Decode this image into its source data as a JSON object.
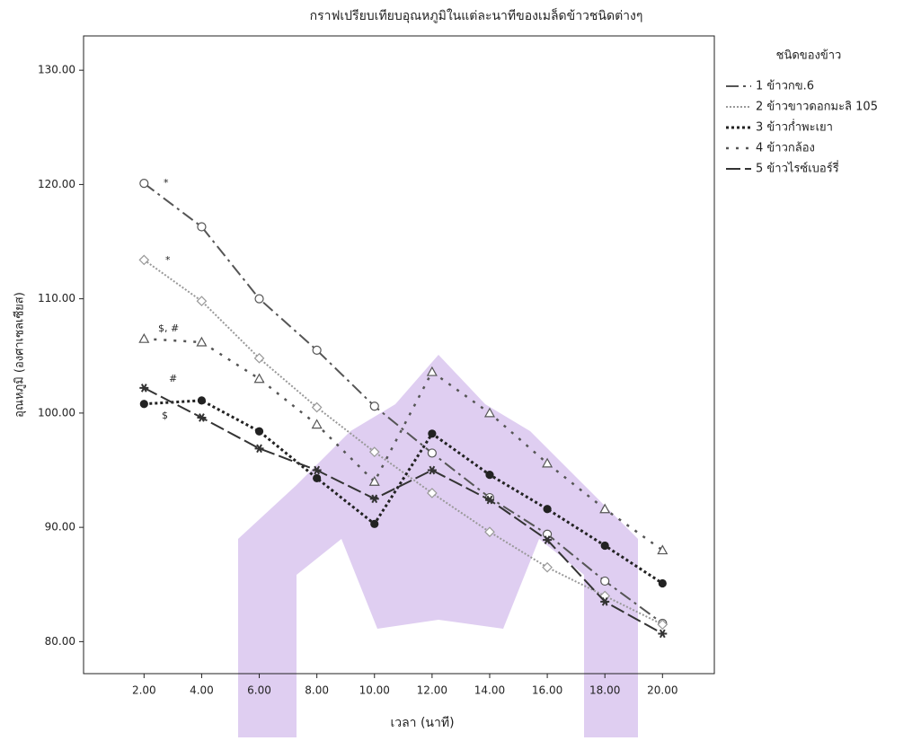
{
  "chart_data": {
    "type": "line",
    "title": "กราฟเปรียบเทียบอุณหภูมิในแต่ละนาทีของเมล็ดข้าวชนิดต่างๆ",
    "x_label": "เวลา (นาที)",
    "y_label": "อุณหภูมิ (องศาเซลเซียส)",
    "legend_title": "ชนิดของข้าว",
    "legend": "right",
    "x": [
      2,
      4,
      6,
      8,
      10,
      12,
      14,
      16,
      18,
      20
    ],
    "xlim": [
      -0.1,
      21.8
    ],
    "ylim": [
      77.2,
      133
    ],
    "xticks": [
      {
        "value": 2,
        "label": "2.00"
      },
      {
        "value": 4,
        "label": "4.00"
      },
      {
        "value": 6,
        "label": "6.00"
      },
      {
        "value": 8,
        "label": "8.00"
      },
      {
        "value": 10,
        "label": "10.00"
      },
      {
        "value": 12,
        "label": "12.00"
      },
      {
        "value": 14,
        "label": "14.00"
      },
      {
        "value": 16,
        "label": "16.00"
      },
      {
        "value": 18,
        "label": "18.00"
      },
      {
        "value": 20,
        "label": "20.00"
      }
    ],
    "yticks": [
      {
        "value": 80,
        "label": "80.00"
      },
      {
        "value": 90,
        "label": "90.00"
      },
      {
        "value": 100,
        "label": "100.00"
      },
      {
        "value": 110,
        "label": "110.00"
      },
      {
        "value": 120,
        "label": "120.00"
      },
      {
        "value": 130,
        "label": "130.00"
      }
    ],
    "series": [
      {
        "name": "1 ข้าวกข.6",
        "color": "#555555",
        "dash": "dash-dot",
        "marker": "circle",
        "values": [
          120.1,
          116.3,
          110.0,
          105.5,
          100.6,
          96.5,
          92.6,
          89.4,
          85.3,
          81.6
        ]
      },
      {
        "name": "2 ข้าวขาวดอกมะลิ 105",
        "color": "#999999",
        "dash": "dot-fine",
        "marker": "diamond",
        "values": [
          113.4,
          109.8,
          104.8,
          100.5,
          96.6,
          93.0,
          89.6,
          86.5,
          84.0,
          81.5
        ]
      },
      {
        "name": "3 ข้าวก่ำพะเยา",
        "color": "#222222",
        "dash": "dot",
        "marker": "filled-circle",
        "values": [
          100.8,
          101.1,
          98.4,
          94.3,
          90.3,
          98.2,
          94.6,
          91.6,
          88.4,
          85.1
        ]
      },
      {
        "name": "4 ข้าวกล้อง",
        "color": "#555555",
        "dash": "dot-sparse",
        "marker": "triangle",
        "values": [
          106.5,
          106.2,
          103.0,
          99.0,
          94.0,
          103.6,
          100.0,
          95.6,
          91.6,
          88.0
        ]
      },
      {
        "name": "5 ข้าวไรซ์เบอร์รี่",
        "color": "#333333",
        "dash": "long-dash",
        "marker": "star",
        "values": [
          102.2,
          99.6,
          96.9,
          95.0,
          92.5,
          95.0,
          92.4,
          88.9,
          83.5,
          80.7
        ]
      }
    ],
    "annotations": [
      "*",
      "*",
      "$, #",
      "#",
      "$"
    ]
  }
}
